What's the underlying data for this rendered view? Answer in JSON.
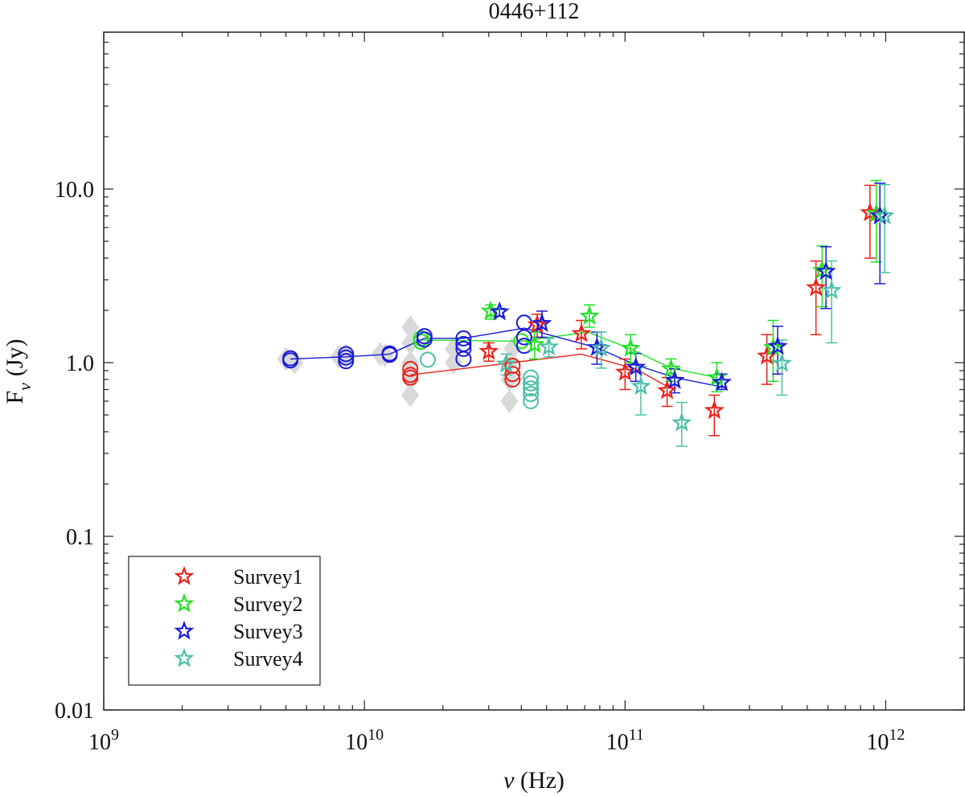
{
  "chart_data": {
    "type": "scatter",
    "title": "0446+112",
    "xlabel": "ν (Hz)",
    "ylabel_main": "F",
    "ylabel_sub": "ν",
    "ylabel_unit": "(Jy)",
    "xscale": "log",
    "yscale": "log",
    "xlim": [
      1000000000.0,
      2000000000000.0
    ],
    "ylim": [
      0.01,
      80
    ],
    "x_ticks": [
      {
        "value": 1000000000.0,
        "base": "10",
        "exp": "9"
      },
      {
        "value": 10000000000.0,
        "base": "10",
        "exp": "10"
      },
      {
        "value": 100000000000.0,
        "base": "10",
        "exp": "11"
      },
      {
        "value": 1000000000000.0,
        "base": "10",
        "exp": "12"
      }
    ],
    "y_ticks": [
      {
        "value": 0.01,
        "label": "0.01"
      },
      {
        "value": 0.1,
        "label": "0.1"
      },
      {
        "value": 1.0,
        "label": "1.0"
      },
      {
        "value": 10.0,
        "label": "10.0"
      }
    ],
    "legend_position": "bottom-left",
    "legend": [
      {
        "label": "Survey1",
        "color": "#e8221a"
      },
      {
        "label": "Survey2",
        "color": "#22e025"
      },
      {
        "label": "Survey3",
        "color": "#1a1ad8"
      },
      {
        "label": "Survey4",
        "color": "#4bbfa6"
      }
    ],
    "background_points_color": "#d9d9d9",
    "background_points": [
      {
        "x": 5000000000.0,
        "y": 1.05
      },
      {
        "x": 5400000000.0,
        "y": 1.0
      },
      {
        "x": 8000000000.0,
        "y": 1.08
      },
      {
        "x": 8500000000.0,
        "y": 1.1
      },
      {
        "x": 11500000000.0,
        "y": 1.12
      },
      {
        "x": 12000000000.0,
        "y": 1.1
      },
      {
        "x": 15000000000.0,
        "y": 1.3
      },
      {
        "x": 15000000000.0,
        "y": 1.0
      },
      {
        "x": 15000000000.0,
        "y": 0.8
      },
      {
        "x": 15000000000.0,
        "y": 0.65
      },
      {
        "x": 15000000000.0,
        "y": 1.6
      },
      {
        "x": 22000000000.0,
        "y": 1.2
      },
      {
        "x": 22000000000.0,
        "y": 1.0
      },
      {
        "x": 36000000000.0,
        "y": 1.0
      },
      {
        "x": 36000000000.0,
        "y": 0.8
      },
      {
        "x": 36000000000.0,
        "y": 0.6
      },
      {
        "x": 37000000000.0,
        "y": 1.2
      }
    ],
    "circles": [
      {
        "series": "Survey1",
        "color": "#e8221a",
        "points": [
          {
            "x": 15000000000.0,
            "y": 0.92
          },
          {
            "x": 15000000000.0,
            "y": 0.85
          },
          {
            "x": 15000000000.0,
            "y": 0.82
          },
          {
            "x": 37000000000.0,
            "y": 0.96
          },
          {
            "x": 37000000000.0,
            "y": 0.86
          },
          {
            "x": 37000000000.0,
            "y": 0.8
          }
        ]
      },
      {
        "series": "Survey2",
        "color": "#22e025",
        "points": [
          {
            "x": 16500000000.0,
            "y": 1.38
          },
          {
            "x": 16500000000.0,
            "y": 1.32
          },
          {
            "x": 40000000000.0,
            "y": 1.33
          }
        ]
      },
      {
        "series": "Survey3",
        "color": "#1a1ad8",
        "points": [
          {
            "x": 5200000000.0,
            "y": 1.06
          },
          {
            "x": 5200000000.0,
            "y": 1.03
          },
          {
            "x": 8500000000.0,
            "y": 1.12
          },
          {
            "x": 8500000000.0,
            "y": 1.07
          },
          {
            "x": 8500000000.0,
            "y": 1.02
          },
          {
            "x": 12500000000.0,
            "y": 1.13
          },
          {
            "x": 12500000000.0,
            "y": 1.11
          },
          {
            "x": 17000000000.0,
            "y": 1.42
          },
          {
            "x": 17000000000.0,
            "y": 1.36
          },
          {
            "x": 24000000000.0,
            "y": 1.38
          },
          {
            "x": 24000000000.0,
            "y": 1.28
          },
          {
            "x": 24000000000.0,
            "y": 1.2
          },
          {
            "x": 24000000000.0,
            "y": 1.05
          },
          {
            "x": 41000000000.0,
            "y": 1.7
          },
          {
            "x": 41000000000.0,
            "y": 1.4
          },
          {
            "x": 41000000000.0,
            "y": 1.25
          }
        ]
      },
      {
        "series": "Survey4",
        "color": "#4bbfa6",
        "points": [
          {
            "x": 17500000000.0,
            "y": 1.04
          },
          {
            "x": 43500000000.0,
            "y": 0.82
          },
          {
            "x": 43500000000.0,
            "y": 0.76
          },
          {
            "x": 43500000000.0,
            "y": 0.71
          },
          {
            "x": 43500000000.0,
            "y": 0.66
          },
          {
            "x": 43500000000.0,
            "y": 0.6
          }
        ]
      }
    ],
    "series": [
      {
        "name": "Survey1",
        "color": "#e8221a",
        "line": [
          {
            "x": 15000000000.0,
            "y": 0.85
          },
          {
            "x": 37000000000.0,
            "y": 1.0
          },
          {
            "x": 68000000000.0,
            "y": 1.12
          },
          {
            "x": 110000000000.0,
            "y": 0.92
          },
          {
            "x": 145000000000.0,
            "y": 0.73
          }
        ],
        "stars": [
          {
            "x": 30000000000.0,
            "y": 1.16,
            "lo": 1.02,
            "hi": 1.3
          },
          {
            "x": 46000000000.0,
            "y": 1.65,
            "lo": 1.4,
            "hi": 1.9
          },
          {
            "x": 68000000000.0,
            "y": 1.47,
            "lo": 1.2,
            "hi": 1.75
          },
          {
            "x": 100000000000.0,
            "y": 0.88,
            "lo": 0.7,
            "hi": 1.05
          },
          {
            "x": 145000000000.0,
            "y": 0.69,
            "lo": 0.56,
            "hi": 0.82
          },
          {
            "x": 220000000000.0,
            "y": 0.53,
            "lo": 0.38,
            "hi": 0.65
          },
          {
            "x": 350000000000.0,
            "y": 1.09,
            "lo": 0.75,
            "hi": 1.45
          },
          {
            "x": 540000000000.0,
            "y": 2.7,
            "lo": 1.45,
            "hi": 3.85
          },
          {
            "x": 870000000000.0,
            "y": 7.3,
            "lo": 4.0,
            "hi": 10.5
          }
        ]
      },
      {
        "name": "Survey2",
        "color": "#22e025",
        "line": [
          {
            "x": 16500000000.0,
            "y": 1.35
          },
          {
            "x": 40000000000.0,
            "y": 1.33
          },
          {
            "x": 72000000000.0,
            "y": 1.5
          },
          {
            "x": 105000000000.0,
            "y": 1.2
          },
          {
            "x": 150000000000.0,
            "y": 0.93
          },
          {
            "x": 225000000000.0,
            "y": 0.82
          }
        ],
        "stars": [
          {
            "x": 30500000000.0,
            "y": 1.98,
            "lo": 1.78,
            "hi": 2.15
          },
          {
            "x": 45000000000.0,
            "y": 1.27,
            "lo": 1.05,
            "hi": 1.5
          },
          {
            "x": 73000000000.0,
            "y": 1.85,
            "lo": 1.6,
            "hi": 2.15
          },
          {
            "x": 105000000000.0,
            "y": 1.21,
            "lo": 1.0,
            "hi": 1.45
          },
          {
            "x": 150000000000.0,
            "y": 0.92,
            "lo": 0.78,
            "hi": 1.05
          },
          {
            "x": 225000000000.0,
            "y": 0.82,
            "lo": 0.68,
            "hi": 1.0
          },
          {
            "x": 370000000000.0,
            "y": 1.22,
            "lo": 0.78,
            "hi": 1.75
          },
          {
            "x": 570000000000.0,
            "y": 3.4,
            "lo": 2.1,
            "hi": 4.7
          },
          {
            "x": 920000000000.0,
            "y": 7.2,
            "lo": 3.8,
            "hi": 11.2
          }
        ]
      },
      {
        "name": "Survey3",
        "color": "#1a1ad8",
        "line": [
          {
            "x": 5200000000.0,
            "y": 1.05
          },
          {
            "x": 8500000000.0,
            "y": 1.08
          },
          {
            "x": 12500000000.0,
            "y": 1.12
          },
          {
            "x": 17000000000.0,
            "y": 1.38
          },
          {
            "x": 24000000000.0,
            "y": 1.38
          },
          {
            "x": 41000000000.0,
            "y": 1.58
          },
          {
            "x": 78000000000.0,
            "y": 1.22
          },
          {
            "x": 110000000000.0,
            "y": 0.97
          },
          {
            "x": 155000000000.0,
            "y": 0.82
          },
          {
            "x": 230000000000.0,
            "y": 0.73
          }
        ],
        "stars": [
          {
            "x": 33000000000.0,
            "y": 1.96,
            "lo": 1.85,
            "hi": 2.05
          },
          {
            "x": 48000000000.0,
            "y": 1.68,
            "lo": 1.4,
            "hi": 1.98
          },
          {
            "x": 78000000000.0,
            "y": 1.22,
            "lo": 0.98,
            "hi": 1.5
          },
          {
            "x": 110000000000.0,
            "y": 0.94,
            "lo": 0.78,
            "hi": 1.13
          },
          {
            "x": 155000000000.0,
            "y": 0.79,
            "lo": 0.67,
            "hi": 0.92
          },
          {
            "x": 235000000000.0,
            "y": 0.77,
            "lo": 0.7,
            "hi": 0.86
          },
          {
            "x": 385000000000.0,
            "y": 1.24,
            "lo": 0.86,
            "hi": 1.62
          },
          {
            "x": 590000000000.0,
            "y": 3.35,
            "lo": 2.05,
            "hi": 4.65
          },
          {
            "x": 950000000000.0,
            "y": 7.0,
            "lo": 2.85,
            "hi": 10.8
          }
        ]
      },
      {
        "name": "Survey4",
        "color": "#4bbfa6",
        "line": [],
        "stars": [
          {
            "x": 35000000000.0,
            "y": 0.98,
            "lo": 0.85,
            "hi": 1.12
          },
          {
            "x": 51000000000.0,
            "y": 1.23,
            "lo": 1.08,
            "hi": 1.38
          },
          {
            "x": 81000000000.0,
            "y": 1.21,
            "lo": 0.93,
            "hi": 1.5
          },
          {
            "x": 115000000000.0,
            "y": 0.73,
            "lo": 0.5,
            "hi": 0.95
          },
          {
            "x": 165000000000.0,
            "y": 0.45,
            "lo": 0.33,
            "hi": 0.59
          },
          {
            "x": 400000000000.0,
            "y": 0.99,
            "lo": 0.65,
            "hi": 1.35
          },
          {
            "x": 620000000000.0,
            "y": 2.6,
            "lo": 1.3,
            "hi": 3.85
          },
          {
            "x": 990000000000.0,
            "y": 7.0,
            "lo": 3.3,
            "hi": 10.6
          }
        ]
      }
    ]
  }
}
